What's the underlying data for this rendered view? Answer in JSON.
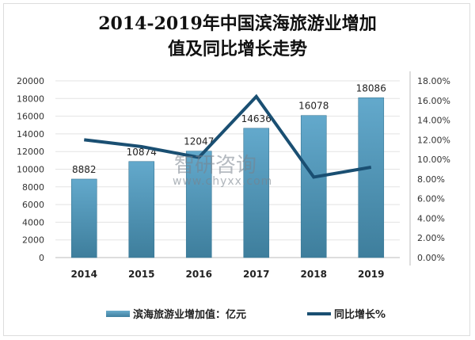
{
  "chart_data": {
    "type": "bar+line",
    "title": "2014-2019年中国滨海旅游业增加值及同比增长走势",
    "categories": [
      "2014",
      "2015",
      "2016",
      "2017",
      "2018",
      "2019"
    ],
    "series": [
      {
        "name": "滨海旅游业增加值：亿元",
        "type": "bar",
        "axis": "left",
        "values": [
          8882,
          10874,
          12047,
          14636,
          16078,
          18086
        ],
        "color": "#4a8fb0"
      },
      {
        "name": "同比增长%",
        "type": "line",
        "axis": "right",
        "values": [
          12.0,
          11.3,
          10.2,
          16.4,
          8.2,
          9.2
        ],
        "color": "#1a4f72"
      }
    ],
    "y_left": {
      "lim": [
        0,
        20000
      ],
      "ticks": [
        "0",
        "2000",
        "4000",
        "6000",
        "8000",
        "10000",
        "12000",
        "14000",
        "16000",
        "18000",
        "20000"
      ]
    },
    "y_right": {
      "lim": [
        0,
        18
      ],
      "ticks": [
        "0.00%",
        "2.00%",
        "4.00%",
        "6.00%",
        "8.00%",
        "10.00%",
        "12.00%",
        "14.00%",
        "16.00%",
        "18.00%"
      ]
    },
    "grid": true,
    "legend": "bottom",
    "watermark": {
      "text": "智研咨询",
      "url": "www.chyxx.com"
    }
  }
}
